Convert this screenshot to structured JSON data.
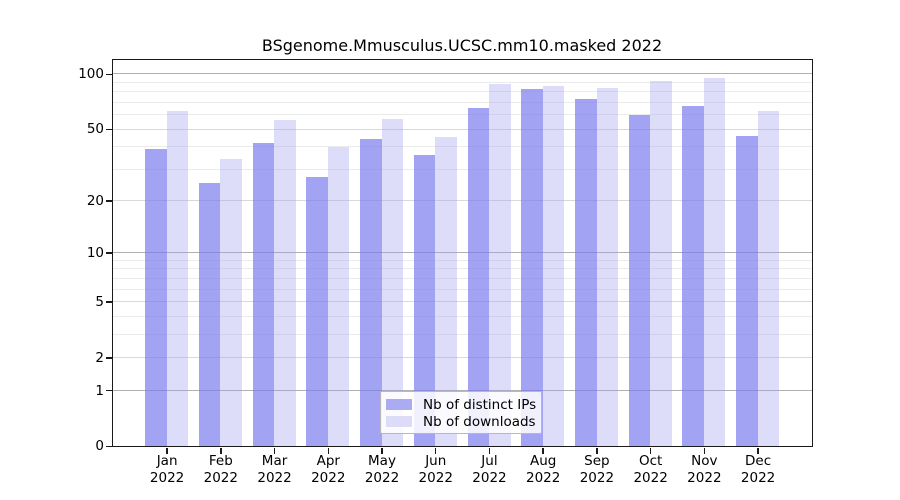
{
  "title": "BSgenome.Mmusculus.UCSC.mm10.masked 2022",
  "colors": {
    "distinct_ips_bar": "#a6a6f4",
    "downloads_bar": "#dcdcfa",
    "grid_decade": "#b0b0b0",
    "grid_labeled": "#d9d9d9",
    "grid_minor": "#ebebeb",
    "axis": "#1a1a1a"
  },
  "chart_data": {
    "type": "bar",
    "title": "BSgenome.Mmusculus.UCSC.mm10.masked 2022",
    "categories": [
      "Jan",
      "Feb",
      "Mar",
      "Apr",
      "May",
      "Jun",
      "Jul",
      "Aug",
      "Sep",
      "Oct",
      "Nov",
      "Dec"
    ],
    "category_sublabel": "2022",
    "series": [
      {
        "name": "Nb of distinct IPs",
        "color": "#ababf2",
        "values": [
          39,
          25,
          42,
          27,
          44,
          36,
          65,
          83,
          73,
          60,
          67,
          46
        ]
      },
      {
        "name": "Nb of downloads",
        "color": "#dcdcf9",
        "values": [
          63,
          34,
          56,
          40,
          57,
          45,
          88,
          86,
          84,
          92,
          95,
          63
        ]
      }
    ],
    "xlabel": "",
    "ylabel": "",
    "y_axis": {
      "scale": "log1p",
      "tick_values": [
        100,
        50,
        20,
        10,
        5,
        2,
        1,
        0
      ],
      "ylim": [
        0,
        120
      ],
      "grid": "on",
      "gridline_values": [
        1,
        2,
        3,
        4,
        5,
        6,
        7,
        8,
        9,
        10,
        20,
        30,
        40,
        50,
        60,
        70,
        80,
        90,
        100
      ]
    },
    "legend_position": "inside-bottom-center"
  }
}
